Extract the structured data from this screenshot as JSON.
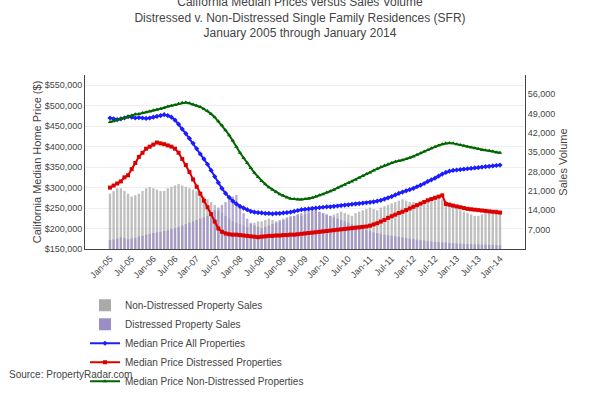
{
  "chart_data": {
    "type": "bar",
    "title": "California Median Prices versus Sales Volume\nDistressed v. Non-Distressed Single Family Residences (SFR)\nJanuary 2005 through January 2014",
    "ylabel": "California Median Home Price ($)",
    "y2label": "Sales Volume",
    "annotations": [
      "Source: PropertyRadar.com"
    ],
    "categories": [
      "Jan-05",
      null,
      null,
      null,
      null,
      null,
      "Jul-05",
      null,
      null,
      null,
      null,
      null,
      "Jan-06",
      null,
      null,
      null,
      null,
      null,
      "Jul-06",
      null,
      null,
      null,
      null,
      null,
      "Jan-07",
      null,
      null,
      null,
      null,
      null,
      "Jul-07",
      null,
      null,
      null,
      null,
      null,
      "Jan-08",
      null,
      null,
      null,
      null,
      null,
      "Jul-08",
      null,
      null,
      null,
      null,
      null,
      "Jan-09",
      null,
      null,
      null,
      null,
      null,
      "Jul-09",
      null,
      null,
      null,
      null,
      null,
      "Jan-10",
      null,
      null,
      null,
      null,
      null,
      "Jul-10",
      null,
      null,
      null,
      null,
      null,
      "Jan-11",
      null,
      null,
      null,
      null,
      null,
      "Jul-11",
      null,
      null,
      null,
      null,
      null,
      "Jan-12",
      null,
      null,
      null,
      null,
      null,
      "Jul-12",
      null,
      null,
      null,
      null,
      null,
      "Jan-13",
      null,
      null,
      null,
      null,
      null,
      "Jul-13",
      null,
      null,
      null,
      null,
      null,
      "Jan-14"
    ],
    "ylim": [
      150000,
      575000
    ],
    "yticks": [
      {
        "value": 150000,
        "label": "$150,000"
      },
      {
        "value": 200000,
        "label": "$200,000"
      },
      {
        "value": 250000,
        "label": "$250,000"
      },
      {
        "value": 300000,
        "label": "$300,000"
      },
      {
        "value": 350000,
        "label": "$350,000"
      },
      {
        "value": 400000,
        "label": "$400,000"
      },
      {
        "value": 450000,
        "label": "$450,000"
      },
      {
        "value": 500000,
        "label": "$500,000"
      },
      {
        "value": 550000,
        "label": "$550,000"
      }
    ],
    "y2lim": [
      0,
      63000
    ],
    "y2ticks": [
      {
        "value": 7000,
        "label": "7,000"
      },
      {
        "value": 14000,
        "label": "14,000"
      },
      {
        "value": 21000,
        "label": "21,000"
      },
      {
        "value": 28000,
        "label": "28,000"
      },
      {
        "value": 35000,
        "label": "35,000"
      },
      {
        "value": 42000,
        "label": "42,000"
      },
      {
        "value": 49000,
        "label": "49,000"
      },
      {
        "value": 56000,
        "label": "56,000"
      }
    ],
    "grid": true,
    "legend": "bottom",
    "stacked": false,
    "series": [
      {
        "name": "Non-Distressed Property Sales",
        "type": "bar",
        "axis": "y2",
        "color": "#aaaaaa",
        "values": [
          20000,
          21000,
          22000,
          22000,
          21000,
          20000,
          19000,
          19500,
          20000,
          21000,
          22000,
          22500,
          22000,
          21500,
          21000,
          21000,
          22000,
          22500,
          23000,
          23500,
          23000,
          22500,
          22000,
          21500,
          21000,
          20000,
          19000,
          18000,
          17000,
          16000,
          14000,
          13000,
          12000,
          11000,
          10000,
          9500,
          9000,
          8500,
          8000,
          9000,
          9500,
          10000,
          10000,
          10500,
          11000,
          10500,
          10000,
          10500,
          11000,
          11500,
          12000,
          12000,
          12500,
          12000,
          12500,
          13000,
          13500,
          14000,
          13500,
          13000,
          12500,
          12000,
          12500,
          13000,
          13500,
          13000,
          12500,
          12000,
          13000,
          13500,
          14000,
          14500,
          15000,
          14500,
          14000,
          15000,
          15500,
          16000,
          16500,
          17000,
          17500,
          18000,
          17500,
          17000,
          17000,
          16500,
          16000,
          16500,
          17000,
          17500,
          18000,
          18500,
          18000,
          17500,
          17000,
          16000,
          15000,
          14000,
          13500,
          13000,
          12500,
          12000,
          12000,
          12500,
          13000,
          13500,
          14000,
          14500,
          13000
        ]
      },
      {
        "name": "Distressed Property Sales",
        "type": "bar",
        "axis": "y2",
        "color": "#9b8ec4",
        "values": [
          3200,
          3500,
          3800,
          4200,
          4000,
          3600,
          3800,
          4000,
          4500,
          4800,
          5200,
          5500,
          5800,
          6000,
          6200,
          6500,
          6800,
          7200,
          7500,
          8000,
          8500,
          9000,
          9500,
          10000,
          10500,
          11000,
          11500,
          12000,
          13000,
          14000,
          15000,
          16000,
          17000,
          18000,
          19000,
          19500,
          16000,
          13000,
          11000,
          9500,
          8500,
          8000,
          7500,
          8000,
          8500,
          9000,
          9500,
          10000,
          10500,
          11000,
          11500,
          12000,
          12500,
          13000,
          13500,
          14000,
          14500,
          14000,
          13500,
          13000,
          12500,
          12000,
          11500,
          11000,
          10500,
          10000,
          9500,
          9000,
          8500,
          8000,
          7500,
          7000,
          6500,
          6000,
          5800,
          5500,
          5200,
          5000,
          4800,
          4600,
          4400,
          4200,
          4000,
          3800,
          3600,
          3400,
          3200,
          3000,
          2800,
          2700,
          2600,
          2500,
          2400,
          2300,
          2200,
          2100,
          2000,
          1900,
          1900,
          1800,
          1800,
          1700,
          1700,
          1600,
          1600,
          1500,
          1500,
          1400,
          1400
        ]
      },
      {
        "name": "Median Price All Properties",
        "type": "line",
        "color": "#1c1cff",
        "marker": "diamond",
        "values": [
          470000,
          468000,
          466000,
          468000,
          470000,
          473000,
          472000,
          470000,
          471000,
          470000,
          469000,
          470000,
          472000,
          474000,
          476000,
          478000,
          476000,
          472000,
          465000,
          455000,
          443000,
          432000,
          420000,
          408000,
          395000,
          382000,
          370000,
          357000,
          342000,
          327000,
          312000,
          298000,
          286000,
          276000,
          267000,
          260000,
          254000,
          250000,
          246000,
          242000,
          240000,
          239000,
          238000,
          237000,
          237000,
          236000,
          237000,
          237000,
          238000,
          239000,
          240000,
          242000,
          244000,
          246000,
          247000,
          248000,
          249000,
          250000,
          251000,
          252000,
          253000,
          253000,
          254000,
          255000,
          256000,
          257000,
          258000,
          259000,
          260000,
          261000,
          262000,
          263000,
          264000,
          265000,
          267000,
          269000,
          272000,
          275000,
          278000,
          282000,
          286000,
          289000,
          292000,
          295000,
          298000,
          302000,
          306000,
          310000,
          315000,
          319000,
          323000,
          328000,
          333000,
          337000,
          340000,
          342000,
          343000,
          344000,
          345000,
          346000,
          347000,
          348000,
          349000,
          350000,
          351000,
          352000,
          353000,
          354000,
          355000
        ]
      },
      {
        "name": "Median Price Distressed Properties",
        "type": "line",
        "color": "#dd0000",
        "marker": "square",
        "values": [
          300000,
          305000,
          310000,
          315000,
          325000,
          330000,
          345000,
          360000,
          375000,
          385000,
          395000,
          400000,
          405000,
          410000,
          408000,
          406000,
          403000,
          400000,
          395000,
          385000,
          370000,
          355000,
          338000,
          320000,
          302000,
          285000,
          268000,
          252000,
          235000,
          217000,
          200000,
          192000,
          188000,
          186000,
          185000,
          185000,
          184000,
          183000,
          182000,
          181000,
          180000,
          179000,
          180000,
          181000,
          182000,
          182000,
          183000,
          183000,
          184000,
          184000,
          185000,
          185000,
          186000,
          187000,
          188000,
          189000,
          190000,
          191000,
          192000,
          193000,
          194000,
          195000,
          196000,
          197000,
          198000,
          199000,
          200000,
          201000,
          202000,
          203000,
          204000,
          205000,
          207000,
          210000,
          213000,
          217000,
          221000,
          226000,
          230000,
          234000,
          238000,
          241000,
          245000,
          249000,
          253000,
          257000,
          261000,
          265000,
          269000,
          272000,
          275000,
          278000,
          281000,
          260000,
          258000,
          256000,
          254000,
          252000,
          250000,
          248000,
          247000,
          246000,
          245000,
          244000,
          243000,
          242000,
          241000,
          240000,
          239000
        ]
      },
      {
        "name": "Median Price Non-Distressed Properties",
        "type": "line",
        "color": "#006600",
        "marker": "triangle-up",
        "values": [
          460000,
          462000,
          465000,
          468000,
          470000,
          473000,
          476000,
          479000,
          480000,
          482000,
          484000,
          486000,
          488000,
          490000,
          492000,
          495000,
          498000,
          500000,
          502000,
          505000,
          507000,
          508000,
          506000,
          503000,
          500000,
          497000,
          492000,
          487000,
          480000,
          472000,
          462000,
          452000,
          440000,
          428000,
          415000,
          400000,
          385000,
          372000,
          360000,
          348000,
          336000,
          326000,
          316000,
          308000,
          301000,
          295000,
          289000,
          284000,
          280000,
          276000,
          273000,
          272000,
          271000,
          271000,
          272000,
          273000,
          275000,
          278000,
          281000,
          284000,
          288000,
          291000,
          295000,
          299000,
          303000,
          307000,
          311000,
          315000,
          319000,
          324000,
          328000,
          333000,
          337000,
          342000,
          346000,
          350000,
          354000,
          357000,
          360000,
          363000,
          365000,
          367000,
          370000,
          373000,
          376000,
          380000,
          384000,
          388000,
          392000,
          396000,
          400000,
          403000,
          406000,
          408000,
          409000,
          408000,
          406000,
          404000,
          402000,
          400000,
          398000,
          396000,
          394000,
          392000,
          391000,
          390000,
          388000,
          386000,
          385000
        ]
      }
    ]
  }
}
